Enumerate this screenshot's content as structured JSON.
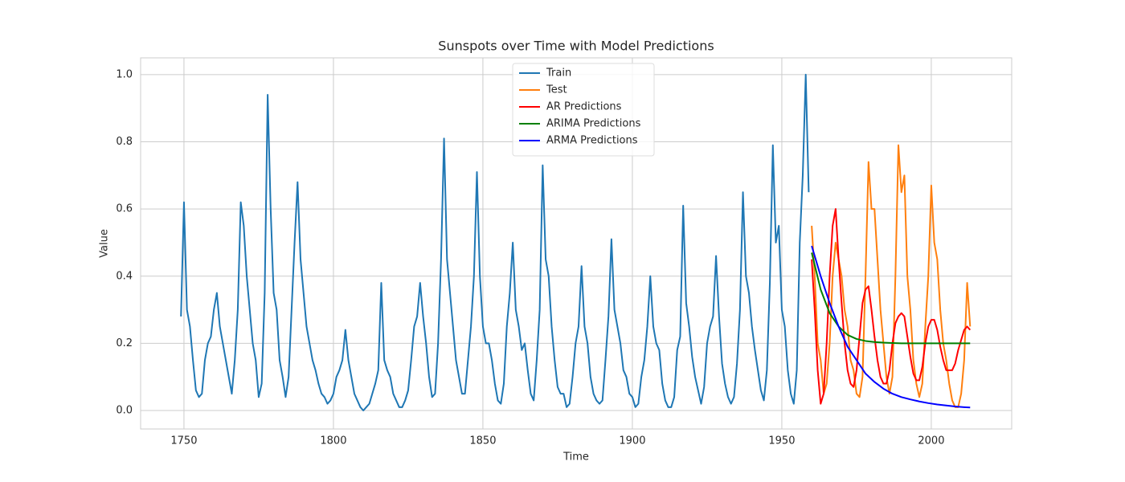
{
  "chart_data": {
    "type": "line",
    "title": "Sunspots over Time with Model Predictions",
    "x_label": "Time",
    "y_label": "Value",
    "xlim": [
      1735.5,
      2026.9
    ],
    "ylim": [
      -0.055,
      1.05
    ],
    "xticks": [
      1750,
      1800,
      1850,
      1900,
      1950,
      2000
    ],
    "yticks": [
      {
        "value": 0,
        "label": "0.0"
      },
      0.2,
      0.4,
      0.6,
      0.8,
      {
        "value": 1,
        "label": "1.0"
      }
    ],
    "grid": true,
    "legend": "upper center",
    "series": [
      {
        "name": "Train",
        "color": "#1f77b4",
        "x": [
          1749,
          1750,
          1751,
          1752,
          1753,
          1754,
          1755,
          1756,
          1757,
          1758,
          1759,
          1760,
          1761,
          1762,
          1763,
          1764,
          1765,
          1766,
          1767,
          1768,
          1769,
          1770,
          1771,
          1772,
          1773,
          1774,
          1775,
          1776,
          1777,
          1778,
          1779,
          1780,
          1781,
          1782,
          1783,
          1784,
          1785,
          1786,
          1787,
          1788,
          1789,
          1790,
          1791,
          1792,
          1793,
          1794,
          1795,
          1796,
          1797,
          1798,
          1799,
          1800,
          1801,
          1802,
          1803,
          1804,
          1805,
          1806,
          1807,
          1808,
          1809,
          1810,
          1811,
          1812,
          1813,
          1814,
          1815,
          1816,
          1817,
          1818,
          1819,
          1820,
          1821,
          1822,
          1823,
          1824,
          1825,
          1826,
          1827,
          1828,
          1829,
          1830,
          1831,
          1832,
          1833,
          1834,
          1835,
          1836,
          1837,
          1838,
          1839,
          1840,
          1841,
          1842,
          1843,
          1844,
          1845,
          1846,
          1847,
          1848,
          1849,
          1850,
          1851,
          1852,
          1853,
          1854,
          1855,
          1856,
          1857,
          1858,
          1859,
          1860,
          1861,
          1862,
          1863,
          1864,
          1865,
          1866,
          1867,
          1868,
          1869,
          1870,
          1871,
          1872,
          1873,
          1874,
          1875,
          1876,
          1877,
          1878,
          1879,
          1880,
          1881,
          1882,
          1883,
          1884,
          1885,
          1886,
          1887,
          1888,
          1889,
          1890,
          1891,
          1892,
          1893,
          1894,
          1895,
          1896,
          1897,
          1898,
          1899,
          1900,
          1901,
          1902,
          1903,
          1904,
          1905,
          1906,
          1907,
          1908,
          1909,
          1910,
          1911,
          1912,
          1913,
          1914,
          1915,
          1916,
          1917,
          1918,
          1919,
          1920,
          1921,
          1922,
          1923,
          1924,
          1925,
          1926,
          1927,
          1928,
          1929,
          1930,
          1931,
          1932,
          1933,
          1934,
          1935,
          1936,
          1937,
          1938,
          1939,
          1940,
          1941,
          1942,
          1943,
          1944,
          1945,
          1946,
          1947,
          1948,
          1949,
          1950,
          1951,
          1952,
          1953,
          1954,
          1955,
          1956,
          1957,
          1958,
          1959
        ],
        "values": [
          0.28,
          0.62,
          0.3,
          0.25,
          0.15,
          0.06,
          0.04,
          0.05,
          0.15,
          0.2,
          0.22,
          0.3,
          0.35,
          0.25,
          0.2,
          0.15,
          0.1,
          0.05,
          0.15,
          0.3,
          0.62,
          0.55,
          0.4,
          0.3,
          0.2,
          0.15,
          0.04,
          0.08,
          0.35,
          0.94,
          0.6,
          0.35,
          0.3,
          0.15,
          0.1,
          0.04,
          0.1,
          0.3,
          0.5,
          0.68,
          0.45,
          0.35,
          0.25,
          0.2,
          0.15,
          0.12,
          0.08,
          0.05,
          0.04,
          0.02,
          0.03,
          0.05,
          0.1,
          0.12,
          0.15,
          0.24,
          0.15,
          0.1,
          0.05,
          0.03,
          0.01,
          0.0,
          0.01,
          0.02,
          0.05,
          0.08,
          0.12,
          0.38,
          0.15,
          0.12,
          0.1,
          0.05,
          0.03,
          0.01,
          0.01,
          0.03,
          0.06,
          0.15,
          0.25,
          0.28,
          0.38,
          0.28,
          0.2,
          0.1,
          0.04,
          0.05,
          0.2,
          0.45,
          0.81,
          0.45,
          0.35,
          0.25,
          0.15,
          0.1,
          0.05,
          0.05,
          0.15,
          0.25,
          0.4,
          0.71,
          0.4,
          0.25,
          0.2,
          0.2,
          0.15,
          0.08,
          0.03,
          0.02,
          0.08,
          0.25,
          0.35,
          0.5,
          0.3,
          0.25,
          0.18,
          0.2,
          0.12,
          0.05,
          0.03,
          0.15,
          0.3,
          0.73,
          0.45,
          0.4,
          0.25,
          0.15,
          0.07,
          0.05,
          0.05,
          0.01,
          0.02,
          0.1,
          0.2,
          0.25,
          0.43,
          0.25,
          0.2,
          0.1,
          0.05,
          0.03,
          0.02,
          0.03,
          0.15,
          0.28,
          0.51,
          0.3,
          0.25,
          0.2,
          0.12,
          0.1,
          0.05,
          0.04,
          0.01,
          0.02,
          0.1,
          0.15,
          0.25,
          0.4,
          0.25,
          0.2,
          0.18,
          0.08,
          0.03,
          0.01,
          0.01,
          0.04,
          0.18,
          0.22,
          0.61,
          0.32,
          0.25,
          0.16,
          0.1,
          0.06,
          0.02,
          0.07,
          0.2,
          0.25,
          0.28,
          0.46,
          0.28,
          0.14,
          0.08,
          0.04,
          0.02,
          0.04,
          0.14,
          0.3,
          0.65,
          0.4,
          0.35,
          0.25,
          0.18,
          0.12,
          0.06,
          0.03,
          0.12,
          0.38,
          0.79,
          0.5,
          0.55,
          0.3,
          0.25,
          0.12,
          0.05,
          0.02,
          0.12,
          0.5,
          0.7,
          1.0,
          0.65
        ]
      },
      {
        "name": "Test",
        "color": "#ff7f0e",
        "x": [
          1960,
          1961,
          1962,
          1963,
          1964,
          1965,
          1966,
          1967,
          1968,
          1969,
          1970,
          1971,
          1972,
          1973,
          1974,
          1975,
          1976,
          1977,
          1978,
          1979,
          1980,
          1981,
          1982,
          1983,
          1984,
          1985,
          1986,
          1987,
          1988,
          1989,
          1990,
          1991,
          1992,
          1993,
          1994,
          1995,
          1996,
          1997,
          1998,
          1999,
          2000,
          2001,
          2002,
          2003,
          2004,
          2005,
          2006,
          2007,
          2008,
          2009,
          2010,
          2011,
          2012,
          2013
        ],
        "values": [
          0.55,
          0.4,
          0.2,
          0.15,
          0.05,
          0.08,
          0.2,
          0.4,
          0.5,
          0.45,
          0.4,
          0.3,
          0.25,
          0.15,
          0.12,
          0.05,
          0.04,
          0.1,
          0.4,
          0.74,
          0.6,
          0.6,
          0.45,
          0.3,
          0.2,
          0.1,
          0.05,
          0.1,
          0.4,
          0.79,
          0.65,
          0.7,
          0.4,
          0.3,
          0.15,
          0.08,
          0.04,
          0.08,
          0.25,
          0.4,
          0.67,
          0.5,
          0.45,
          0.3,
          0.2,
          0.15,
          0.08,
          0.03,
          0.01,
          0.01,
          0.05,
          0.15,
          0.38,
          0.25
        ]
      },
      {
        "name": "AR Predictions",
        "color": "#ff0000",
        "x": [
          1960,
          1961,
          1962,
          1963,
          1964,
          1965,
          1966,
          1967,
          1968,
          1969,
          1970,
          1971,
          1972,
          1973,
          1974,
          1975,
          1976,
          1977,
          1978,
          1979,
          1980,
          1981,
          1982,
          1983,
          1984,
          1985,
          1986,
          1987,
          1988,
          1989,
          1990,
          1991,
          1992,
          1993,
          1994,
          1995,
          1996,
          1997,
          1998,
          1999,
          2000,
          2001,
          2002,
          2003,
          2004,
          2005,
          2006,
          2007,
          2008,
          2009,
          2010,
          2011,
          2012,
          2013
        ],
        "values": [
          0.45,
          0.3,
          0.12,
          0.02,
          0.05,
          0.2,
          0.4,
          0.55,
          0.6,
          0.45,
          0.32,
          0.2,
          0.12,
          0.08,
          0.07,
          0.12,
          0.22,
          0.32,
          0.36,
          0.37,
          0.3,
          0.22,
          0.15,
          0.1,
          0.08,
          0.08,
          0.12,
          0.2,
          0.26,
          0.28,
          0.29,
          0.28,
          0.22,
          0.16,
          0.11,
          0.09,
          0.09,
          0.13,
          0.2,
          0.25,
          0.27,
          0.27,
          0.24,
          0.19,
          0.15,
          0.12,
          0.12,
          0.12,
          0.14,
          0.18,
          0.21,
          0.24,
          0.25,
          0.24
        ]
      },
      {
        "name": "ARIMA Predictions",
        "color": "#008000",
        "x": [
          1960,
          1963,
          1966,
          1969,
          1972,
          1975,
          1978,
          1981,
          1984,
          1987,
          1990,
          1993,
          1996,
          1999,
          2002,
          2005,
          2008,
          2011,
          2013
        ],
        "values": [
          0.47,
          0.36,
          0.29,
          0.25,
          0.225,
          0.213,
          0.207,
          0.204,
          0.202,
          0.201,
          0.2,
          0.2,
          0.2,
          0.2,
          0.2,
          0.2,
          0.2,
          0.2,
          0.2
        ]
      },
      {
        "name": "ARMA Predictions",
        "color": "#0000ff",
        "x": [
          1960,
          1963,
          1966,
          1969,
          1972,
          1975,
          1978,
          1981,
          1984,
          1987,
          1990,
          1993,
          1996,
          1999,
          2002,
          2005,
          2008,
          2011,
          2013
        ],
        "values": [
          0.49,
          0.4,
          0.32,
          0.25,
          0.19,
          0.15,
          0.11,
          0.085,
          0.065,
          0.05,
          0.04,
          0.033,
          0.027,
          0.022,
          0.018,
          0.015,
          0.012,
          0.01,
          0.009
        ]
      }
    ]
  }
}
